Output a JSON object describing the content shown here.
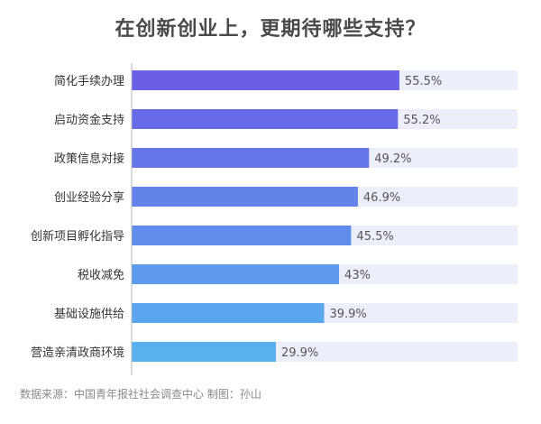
{
  "chart_data": {
    "type": "bar",
    "orientation": "horizontal",
    "title": "在创新创业上，更期待哪些支持？",
    "categories": [
      "简化手续办理",
      "启动资金支持",
      "政策信息对接",
      "创业经验分享",
      "创新项目孵化指导",
      "税收减免",
      "基础设施供给",
      "营造亲清政商环境"
    ],
    "values": [
      55.5,
      55.2,
      49.2,
      46.9,
      45.5,
      43,
      39.9,
      29.9
    ],
    "value_labels": [
      "55.5%",
      "55.2%",
      "49.2%",
      "46.9%",
      "45.5%",
      "43%",
      "39.9%",
      "29.9%"
    ],
    "xlim": [
      0,
      80
    ],
    "unit": "%",
    "grid": false,
    "legend": "none",
    "colors": {
      "bar_top": "#6b5fe6",
      "bar_bottom": "#58b0ef",
      "track": "#eceef9",
      "axis": "#b9b9b9",
      "label": "#333333",
      "value_label": "#555555"
    }
  },
  "footer": "数据来源：中国青年报社社会调查中心 制图：孙山"
}
